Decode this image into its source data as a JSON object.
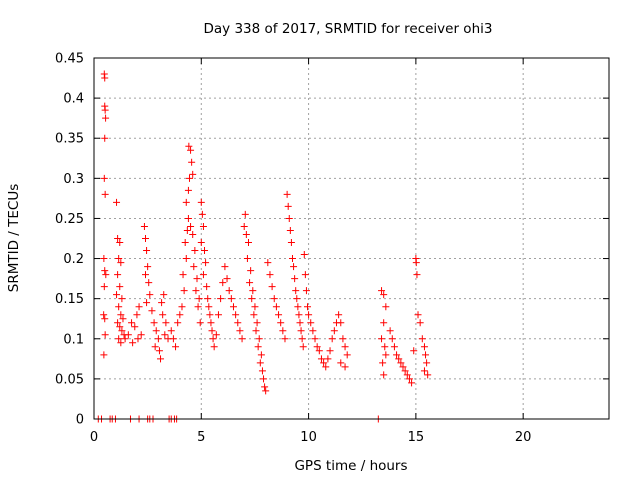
{
  "chart_data": {
    "type": "scatter",
    "title": "Day 338 of 2017, SRMTID for receiver ohi3",
    "xlabel": "GPS time / hours",
    "ylabel": "SRMTID / TECUs",
    "xlim": [
      0,
      24
    ],
    "ylim": [
      0,
      0.45
    ],
    "xticks": [
      0,
      5,
      10,
      15,
      20
    ],
    "xtick_labels": [
      "0",
      "5",
      "10",
      "15",
      "20"
    ],
    "yticks": [
      0,
      0.05,
      0.1,
      0.15,
      0.2,
      0.25,
      0.3,
      0.35,
      0.4,
      0.45
    ],
    "ytick_labels": [
      "0",
      "0.05",
      "0.1",
      "0.15",
      "0.2",
      "0.25",
      "0.3",
      "0.35",
      "0.4",
      "0.45"
    ],
    "grid": true,
    "marker": "+",
    "color": "#ff0000",
    "series": [
      {
        "name": "SRMTID",
        "points": [
          [
            0.48,
            0.43
          ],
          [
            0.5,
            0.425
          ],
          [
            0.5,
            0.39
          ],
          [
            0.52,
            0.385
          ],
          [
            0.54,
            0.375
          ],
          [
            0.5,
            0.35
          ],
          [
            0.48,
            0.3
          ],
          [
            0.52,
            0.28
          ],
          [
            0.46,
            0.2
          ],
          [
            0.5,
            0.185
          ],
          [
            0.55,
            0.18
          ],
          [
            0.48,
            0.165
          ],
          [
            0.45,
            0.13
          ],
          [
            0.5,
            0.125
          ],
          [
            0.52,
            0.105
          ],
          [
            0.46,
            0.08
          ],
          [
            1.05,
            0.27
          ],
          [
            1.1,
            0.225
          ],
          [
            1.2,
            0.22
          ],
          [
            1.15,
            0.2
          ],
          [
            1.25,
            0.195
          ],
          [
            1.1,
            0.18
          ],
          [
            1.2,
            0.165
          ],
          [
            1.05,
            0.155
          ],
          [
            1.3,
            0.15
          ],
          [
            1.15,
            0.14
          ],
          [
            1.25,
            0.13
          ],
          [
            1.35,
            0.125
          ],
          [
            1.1,
            0.12
          ],
          [
            1.2,
            0.115
          ],
          [
            1.3,
            0.11
          ],
          [
            1.4,
            0.105
          ],
          [
            1.15,
            0.1
          ],
          [
            1.25,
            0.095
          ],
          [
            1.45,
            0.1
          ],
          [
            1.6,
            0.105
          ],
          [
            1.75,
            0.12
          ],
          [
            1.9,
            0.115
          ],
          [
            2.0,
            0.13
          ],
          [
            2.1,
            0.14
          ],
          [
            1.8,
            0.095
          ],
          [
            2.05,
            0.1
          ],
          [
            2.2,
            0.105
          ],
          [
            2.35,
            0.24
          ],
          [
            2.4,
            0.225
          ],
          [
            2.45,
            0.21
          ],
          [
            2.5,
            0.19
          ],
          [
            2.4,
            0.18
          ],
          [
            2.55,
            0.17
          ],
          [
            2.6,
            0.155
          ],
          [
            2.45,
            0.145
          ],
          [
            2.7,
            0.135
          ],
          [
            2.8,
            0.12
          ],
          [
            2.9,
            0.11
          ],
          [
            3.0,
            0.1
          ],
          [
            2.85,
            0.09
          ],
          [
            3.05,
            0.085
          ],
          [
            3.1,
            0.075
          ],
          [
            3.15,
            0.145
          ],
          [
            3.25,
            0.155
          ],
          [
            3.2,
            0.13
          ],
          [
            3.35,
            0.12
          ],
          [
            3.3,
            0.105
          ],
          [
            3.45,
            0.1
          ],
          [
            3.6,
            0.11
          ],
          [
            3.7,
            0.1
          ],
          [
            3.8,
            0.09
          ],
          [
            3.9,
            0.12
          ],
          [
            4.0,
            0.13
          ],
          [
            4.1,
            0.14
          ],
          [
            4.2,
            0.16
          ],
          [
            4.15,
            0.18
          ],
          [
            4.3,
            0.2
          ],
          [
            4.25,
            0.22
          ],
          [
            4.35,
            0.235
          ],
          [
            4.4,
            0.25
          ],
          [
            4.3,
            0.27
          ],
          [
            4.4,
            0.285
          ],
          [
            4.45,
            0.3
          ],
          [
            4.42,
            0.34
          ],
          [
            4.5,
            0.335
          ],
          [
            4.55,
            0.32
          ],
          [
            4.6,
            0.305
          ],
          [
            4.5,
            0.24
          ],
          [
            4.6,
            0.23
          ],
          [
            4.7,
            0.21
          ],
          [
            4.65,
            0.19
          ],
          [
            4.8,
            0.175
          ],
          [
            4.75,
            0.16
          ],
          [
            4.9,
            0.15
          ],
          [
            4.85,
            0.14
          ],
          [
            4.95,
            0.12
          ],
          [
            5.0,
            0.27
          ],
          [
            5.05,
            0.255
          ],
          [
            5.1,
            0.24
          ],
          [
            5.0,
            0.22
          ],
          [
            5.15,
            0.21
          ],
          [
            5.2,
            0.195
          ],
          [
            5.1,
            0.18
          ],
          [
            5.25,
            0.165
          ],
          [
            5.3,
            0.15
          ],
          [
            5.35,
            0.14
          ],
          [
            5.4,
            0.13
          ],
          [
            5.45,
            0.12
          ],
          [
            5.5,
            0.11
          ],
          [
            5.55,
            0.1
          ],
          [
            5.6,
            0.09
          ],
          [
            5.7,
            0.105
          ],
          [
            5.8,
            0.13
          ],
          [
            5.9,
            0.15
          ],
          [
            6.0,
            0.17
          ],
          [
            6.1,
            0.19
          ],
          [
            6.2,
            0.175
          ],
          [
            6.3,
            0.16
          ],
          [
            6.4,
            0.15
          ],
          [
            6.5,
            0.14
          ],
          [
            6.6,
            0.13
          ],
          [
            6.7,
            0.12
          ],
          [
            6.8,
            0.11
          ],
          [
            6.9,
            0.1
          ],
          [
            7.0,
            0.24
          ],
          [
            7.05,
            0.255
          ],
          [
            7.1,
            0.23
          ],
          [
            7.2,
            0.22
          ],
          [
            7.15,
            0.2
          ],
          [
            7.3,
            0.185
          ],
          [
            7.25,
            0.17
          ],
          [
            7.4,
            0.16
          ],
          [
            7.35,
            0.15
          ],
          [
            7.5,
            0.14
          ],
          [
            7.45,
            0.13
          ],
          [
            7.6,
            0.12
          ],
          [
            7.55,
            0.11
          ],
          [
            7.7,
            0.1
          ],
          [
            7.65,
            0.09
          ],
          [
            7.8,
            0.08
          ],
          [
            7.75,
            0.07
          ],
          [
            7.85,
            0.06
          ],
          [
            7.9,
            0.05
          ],
          [
            7.95,
            0.04
          ],
          [
            8.0,
            0.035
          ],
          [
            8.1,
            0.195
          ],
          [
            8.2,
            0.18
          ],
          [
            8.3,
            0.165
          ],
          [
            8.4,
            0.15
          ],
          [
            8.5,
            0.14
          ],
          [
            8.6,
            0.13
          ],
          [
            8.7,
            0.12
          ],
          [
            8.8,
            0.11
          ],
          [
            8.9,
            0.1
          ],
          [
            9.0,
            0.28
          ],
          [
            9.05,
            0.265
          ],
          [
            9.1,
            0.25
          ],
          [
            9.15,
            0.235
          ],
          [
            9.2,
            0.22
          ],
          [
            9.25,
            0.2
          ],
          [
            9.3,
            0.19
          ],
          [
            9.35,
            0.175
          ],
          [
            9.4,
            0.16
          ],
          [
            9.45,
            0.15
          ],
          [
            9.5,
            0.14
          ],
          [
            9.55,
            0.13
          ],
          [
            9.6,
            0.12
          ],
          [
            9.65,
            0.11
          ],
          [
            9.7,
            0.1
          ],
          [
            9.75,
            0.09
          ],
          [
            9.8,
            0.205
          ],
          [
            9.85,
            0.18
          ],
          [
            9.9,
            0.16
          ],
          [
            9.95,
            0.14
          ],
          [
            10.0,
            0.13
          ],
          [
            10.1,
            0.12
          ],
          [
            10.2,
            0.11
          ],
          [
            10.3,
            0.1
          ],
          [
            10.4,
            0.09
          ],
          [
            10.5,
            0.085
          ],
          [
            10.6,
            0.075
          ],
          [
            10.7,
            0.07
          ],
          [
            10.8,
            0.065
          ],
          [
            10.9,
            0.075
          ],
          [
            11.0,
            0.085
          ],
          [
            11.1,
            0.1
          ],
          [
            11.2,
            0.11
          ],
          [
            11.3,
            0.12
          ],
          [
            11.4,
            0.13
          ],
          [
            11.5,
            0.12
          ],
          [
            11.6,
            0.1
          ],
          [
            11.7,
            0.09
          ],
          [
            11.8,
            0.08
          ],
          [
            11.5,
            0.07
          ],
          [
            11.7,
            0.065
          ],
          [
            13.4,
            0.16
          ],
          [
            13.5,
            0.155
          ],
          [
            13.6,
            0.14
          ],
          [
            13.5,
            0.12
          ],
          [
            13.4,
            0.1
          ],
          [
            13.55,
            0.09
          ],
          [
            13.6,
            0.08
          ],
          [
            13.45,
            0.07
          ],
          [
            13.5,
            0.055
          ],
          [
            13.8,
            0.11
          ],
          [
            13.9,
            0.1
          ],
          [
            14.0,
            0.09
          ],
          [
            14.1,
            0.08
          ],
          [
            14.2,
            0.075
          ],
          [
            14.3,
            0.07
          ],
          [
            14.4,
            0.065
          ],
          [
            14.5,
            0.06
          ],
          [
            14.6,
            0.055
          ],
          [
            14.7,
            0.05
          ],
          [
            14.8,
            0.045
          ],
          [
            14.9,
            0.085
          ],
          [
            15.0,
            0.2
          ],
          [
            15.02,
            0.195
          ],
          [
            15.05,
            0.18
          ],
          [
            15.1,
            0.13
          ],
          [
            15.2,
            0.12
          ],
          [
            15.3,
            0.1
          ],
          [
            15.4,
            0.09
          ],
          [
            15.45,
            0.08
          ],
          [
            15.5,
            0.07
          ],
          [
            15.4,
            0.06
          ],
          [
            15.55,
            0.055
          ],
          [
            0.2,
            0
          ],
          [
            0.35,
            0
          ],
          [
            0.75,
            0
          ],
          [
            0.85,
            0
          ],
          [
            1.0,
            0
          ],
          [
            1.7,
            0
          ],
          [
            2.1,
            0
          ],
          [
            2.5,
            0
          ],
          [
            2.6,
            0
          ],
          [
            2.75,
            0
          ],
          [
            3.5,
            0
          ],
          [
            3.6,
            0
          ],
          [
            3.75,
            0
          ],
          [
            3.85,
            0
          ],
          [
            13.25,
            0
          ]
        ]
      }
    ]
  }
}
